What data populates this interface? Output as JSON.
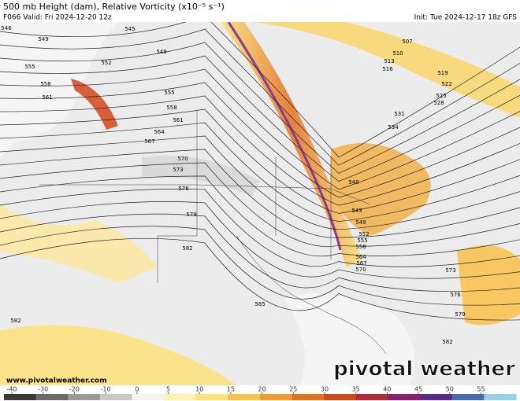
{
  "title": "500 mb Height (dam), Relative Vorticity (x10⁻⁵ s⁻¹)",
  "valid": "F066 Valid: Fri 2024-12-20 12z",
  "init": "Init: Tue 2024-12-17 18z GFS",
  "website": "www.pivotalweather.com",
  "brand": "pivotal weather",
  "contour_labels": [
    546,
    549,
    552,
    555,
    558,
    561,
    545,
    549,
    555,
    558,
    561,
    564,
    567,
    570,
    573,
    576,
    579,
    582,
    585,
    582,
    507,
    510,
    513,
    516,
    519,
    522,
    525,
    528,
    531,
    534,
    540,
    543,
    549,
    552,
    555,
    558,
    564,
    567,
    570,
    573,
    576,
    579,
    582
  ],
  "colorbar": {
    "ticks": [
      -40,
      -30,
      -20,
      -10,
      0,
      5,
      10,
      15,
      20,
      25,
      30,
      35,
      40,
      45,
      50,
      55
    ],
    "colors": [
      "#3a3a3a",
      "#6a6a6a",
      "#9a9a9a",
      "#c8c8c8",
      "#f4f4f4",
      "#fff3b0",
      "#fde27a",
      "#f9c24a",
      "#f29a2e",
      "#e5701f",
      "#d4461a",
      "#b52a3a",
      "#8a1f6a",
      "#5a2a8a",
      "#4a6ab0",
      "#9ad0e6"
    ]
  }
}
